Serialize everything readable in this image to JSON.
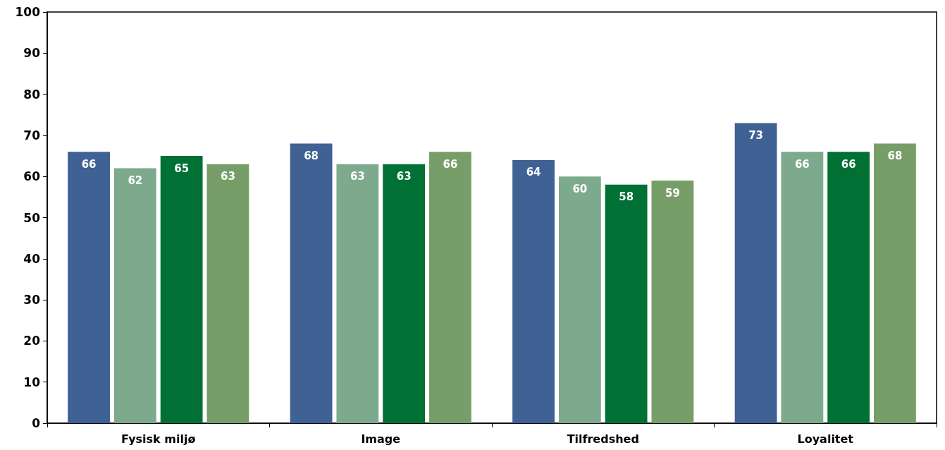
{
  "chart_data": {
    "type": "bar",
    "categories": [
      "Fysisk miljø",
      "Image",
      "Tilfredshed",
      "Loyalitet"
    ],
    "series": [
      {
        "color": "#3f6194",
        "values": [
          66,
          68,
          64,
          73
        ]
      },
      {
        "color": "#7daa8d",
        "values": [
          62,
          63,
          60,
          66
        ]
      },
      {
        "color": "#007034",
        "values": [
          65,
          63,
          58,
          66
        ]
      },
      {
        "color": "#779e68",
        "values": [
          63,
          66,
          59,
          68
        ]
      }
    ],
    "ylim": [
      0,
      100
    ],
    "yticks": [
      0,
      10,
      20,
      30,
      40,
      50,
      60,
      70,
      80,
      90,
      100
    ],
    "grid": false,
    "data_labels": true
  }
}
